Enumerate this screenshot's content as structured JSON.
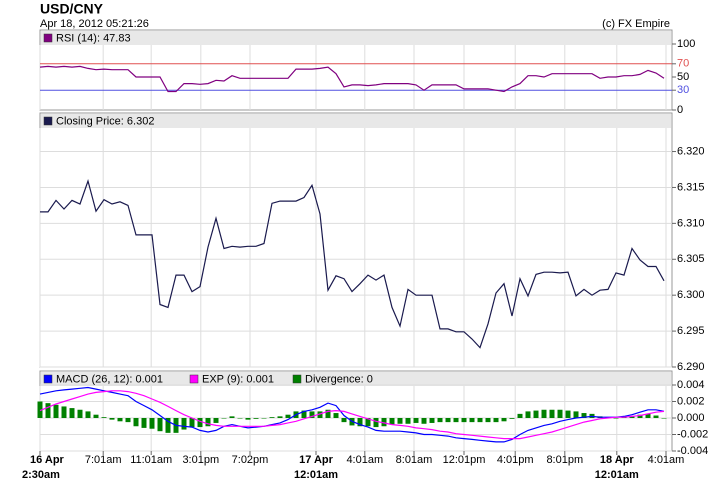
{
  "header": {
    "title": "USD/CNY",
    "timestamp": "Apr 18, 2012 05:21:26",
    "credit": "(c) FX Empire"
  },
  "chart_data": [
    {
      "type": "line",
      "xlim": [
        0,
        79
      ],
      "ylim": [
        0,
        100
      ],
      "yticks": [
        0,
        30,
        50,
        70,
        100
      ],
      "hlines": [
        {
          "value": 70,
          "color": "#e05050"
        },
        {
          "value": 30,
          "color": "#5050e0"
        }
      ],
      "series": [
        {
          "name": "RSI (14): 47.83",
          "color": "#800080",
          "values": [
            65,
            66,
            65,
            66,
            65,
            66,
            63,
            61,
            62,
            61,
            61,
            61,
            50,
            50,
            50,
            50,
            28,
            28,
            40,
            40,
            39,
            40,
            45,
            44,
            52,
            48,
            48,
            48,
            48,
            48,
            48,
            48,
            62,
            62,
            62,
            63,
            65,
            55,
            35,
            38,
            38,
            37,
            38,
            40,
            40,
            40,
            40,
            38,
            30,
            38,
            38,
            38,
            38,
            32,
            32,
            32,
            32,
            30,
            28,
            35,
            40,
            52,
            52,
            50,
            55,
            55,
            55,
            55,
            55,
            55,
            48,
            50,
            50,
            52,
            52,
            54,
            60,
            56,
            48
          ]
        }
      ]
    },
    {
      "type": "line",
      "xlim": [
        0,
        79
      ],
      "ylim": [
        6.29,
        6.323
      ],
      "grid": true,
      "yticks": [
        {
          "value": 6.29,
          "label": "6.290"
        },
        6.295,
        {
          "value": 6.3,
          "label": "6.300"
        },
        6.305,
        {
          "value": 6.31,
          "label": "6.310"
        },
        6.315,
        {
          "value": 6.32,
          "label": "6.320"
        }
      ],
      "series": [
        {
          "name": "Closing Price: 6.302",
          "color": "#1a1a4e",
          "values": [
            6.3116,
            6.3116,
            6.3132,
            6.312,
            6.3132,
            6.3127,
            6.3159,
            6.3117,
            6.3133,
            6.3127,
            6.313,
            6.3125,
            6.3084,
            6.3084,
            6.3084,
            6.2987,
            6.2983,
            6.3028,
            6.3028,
            6.3005,
            6.3012,
            6.3067,
            6.3107,
            6.3065,
            6.3068,
            6.3067,
            6.3068,
            6.3068,
            6.3072,
            6.3128,
            6.3131,
            6.3131,
            6.3131,
            6.3136,
            6.3153,
            6.3113,
            6.3007,
            6.3027,
            6.3023,
            6.3005,
            6.3016,
            6.3028,
            6.3021,
            6.3028,
            6.2983,
            6.2957,
            6.3008,
            6.3,
            6.3,
            6.3,
            6.2953,
            6.2953,
            6.2949,
            6.2949,
            6.2939,
            6.2927,
            6.296,
            6.3003,
            6.3016,
            6.2971,
            6.3023,
            6.2999,
            6.3029,
            6.3032,
            6.3032,
            6.3031,
            6.3032,
            6.2999,
            6.3008,
            6.3,
            6.3007,
            6.3008,
            6.3031,
            6.3028,
            6.3065,
            6.3049,
            6.304,
            6.304,
            6.302
          ]
        }
      ]
    },
    {
      "type": "macd",
      "xlim": [
        0,
        79
      ],
      "ylim": [
        -0.004,
        0.004
      ],
      "grid": true,
      "yticks": [
        -0.004,
        -0.002,
        {
          "value": 0,
          "label": "0.000"
        },
        0.002,
        0.004
      ],
      "xticks": [
        {
          "value": 0,
          "label": "2:30am"
        },
        {
          "value": 7.9,
          "label": "7:01am"
        },
        {
          "value": 13.9,
          "label": "11:01am"
        },
        {
          "value": 20.1,
          "label": "3:01pm"
        },
        {
          "value": 26.25,
          "label": "7:02pm"
        },
        {
          "value": 34.5,
          "label": "12:01am"
        },
        {
          "value": 40.6,
          "label": "4:01am"
        },
        {
          "value": 46.75,
          "label": "8:01am"
        },
        {
          "value": 53,
          "label": "12:01pm"
        },
        {
          "value": 59.4,
          "label": "4:01pm"
        },
        {
          "value": 65.6,
          "label": "8:01pm"
        },
        {
          "value": 72.1,
          "label": "12:01am"
        },
        {
          "value": 78.25,
          "label": "4:01am"
        }
      ],
      "xdates": [
        {
          "value": 0,
          "label": "16 Apr"
        },
        {
          "value": 34.5,
          "label": "17 Apr"
        },
        {
          "value": 72.1,
          "label": "18 Apr"
        }
      ],
      "series": [
        {
          "name": "MACD (26, 12): 0.001",
          "color": "#0000ff",
          "kind": "line",
          "values": [
            0.0029,
            0.0031,
            0.0033,
            0.0034,
            0.0035,
            0.0036,
            0.0037,
            0.0035,
            0.0033,
            0.0031,
            0.0029,
            0.0027,
            0.002,
            0.0015,
            0.001,
            0.0003,
            -0.0004,
            -0.0009,
            -0.001,
            -0.0011,
            -0.0015,
            -0.0017,
            -0.0015,
            -0.001,
            -0.0008,
            -0.001,
            -0.0012,
            -0.0011,
            -0.001,
            -0.0008,
            -0.0006,
            -0.0002,
            0.0004,
            0.0008,
            0.001,
            0.0013,
            0.0018,
            0.0015,
            0.0003,
            -0.0004,
            -0.0008,
            -0.0011,
            -0.0015,
            -0.0016,
            -0.0016,
            -0.0016,
            -0.0017,
            -0.0018,
            -0.002,
            -0.002,
            -0.0021,
            -0.0022,
            -0.0024,
            -0.0025,
            -0.0026,
            -0.0027,
            -0.0028,
            -0.0029,
            -0.0029,
            -0.0026,
            -0.002,
            -0.0015,
            -0.0012,
            -0.0009,
            -0.0007,
            -0.0004,
            -0.0002,
            0,
            0.0001,
            0.0002,
            0.0001,
            0.0001,
            0.0001,
            0.0002,
            0.0004,
            0.0007,
            0.001,
            0.001,
            0.0008
          ]
        },
        {
          "name": "EXP (9): 0.001",
          "color": "#ff00ff",
          "kind": "line",
          "values": [
            0.0009,
            0.0013,
            0.0017,
            0.002,
            0.0023,
            0.0026,
            0.0029,
            0.0031,
            0.0032,
            0.0033,
            0.0033,
            0.0032,
            0.003,
            0.0027,
            0.0023,
            0.0019,
            0.0014,
            0.0009,
            0.0004,
            0,
            -0.0004,
            -0.0007,
            -0.0009,
            -0.001,
            -0.001,
            -0.001,
            -0.001,
            -0.001,
            -0.001,
            -0.0009,
            -0.0008,
            -0.0006,
            -0.0004,
            -0.0001,
            0.0002,
            0.0005,
            0.0008,
            0.0009,
            0.0008,
            0.0005,
            0.0002,
            -0.0001,
            -0.0004,
            -0.0006,
            -0.0008,
            -0.0009,
            -0.001,
            -0.0012,
            -0.0013,
            -0.0014,
            -0.0016,
            -0.0017,
            -0.0019,
            -0.002,
            -0.0021,
            -0.0022,
            -0.0023,
            -0.0024,
            -0.0025,
            -0.0025,
            -0.0025,
            -0.0023,
            -0.0021,
            -0.0019,
            -0.0017,
            -0.0014,
            -0.0011,
            -0.0008,
            -0.0005,
            -0.0003,
            -0.0001,
            0,
            0.0001,
            0.0001,
            0.0002,
            0.0003,
            0.0005,
            0.0007,
            0.0008
          ]
        },
        {
          "name": "Divergence: 0",
          "color": "#008000",
          "kind": "bar",
          "values": [
            0.002,
            0.0018,
            0.0016,
            0.0014,
            0.0012,
            0.001,
            0.0008,
            0.0004,
            0.0001,
            -0.0002,
            -0.0004,
            -0.0005,
            -0.001,
            -0.0012,
            -0.0013,
            -0.0016,
            -0.0018,
            -0.0018,
            -0.0014,
            -0.0011,
            -0.0011,
            -0.001,
            -0.0006,
            0,
            0.0002,
            0,
            -0.0002,
            -0.0001,
            0,
            0.0001,
            0.0002,
            0.0004,
            0.0008,
            0.0009,
            0.0008,
            0.0008,
            0.001,
            0.0006,
            -0.0005,
            -0.0009,
            -0.001,
            -0.001,
            -0.0011,
            -0.001,
            -0.0008,
            -0.0007,
            -0.0007,
            -0.0006,
            -0.0007,
            -0.0006,
            -0.0005,
            -0.0005,
            -0.0005,
            -0.0005,
            -0.0005,
            -0.0005,
            -0.0005,
            -0.0005,
            -0.0004,
            -0.0001,
            0.0005,
            0.0008,
            0.0009,
            0.001,
            0.001,
            0.001,
            0.0009,
            0.0008,
            0.0006,
            0.0005,
            0.0002,
            0.0001,
            0,
            0.0001,
            0.0002,
            0.0004,
            0.0005,
            0.0003,
            0
          ]
        }
      ]
    }
  ]
}
